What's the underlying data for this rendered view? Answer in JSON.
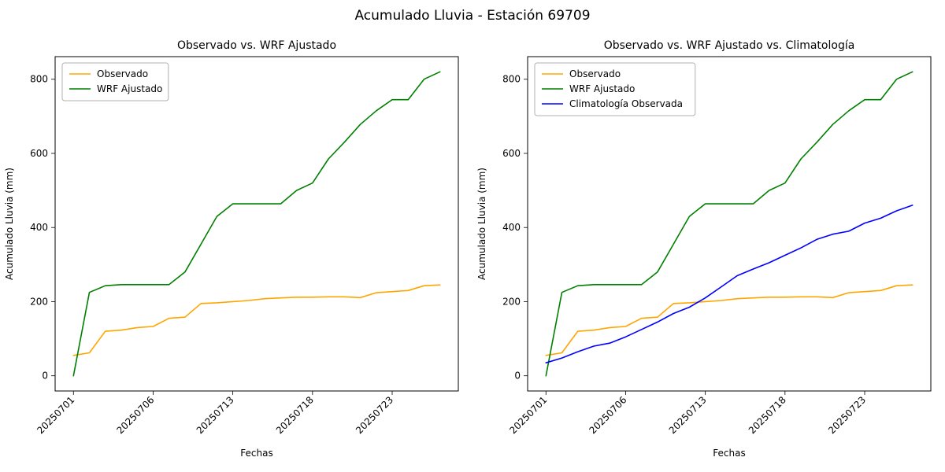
{
  "figure": {
    "title": "Acumulado Lluvia - Estación 69709"
  },
  "chart_data": [
    {
      "type": "line",
      "title": "Observado vs. WRF Ajustado",
      "xlabel": "Fechas",
      "ylabel": "Acumulado Lluvia (mm)",
      "x": [
        "20250701",
        "20250702",
        "20250703",
        "20250704",
        "20250705",
        "20250706",
        "20250707",
        "20250708",
        "20250709",
        "20250710",
        "20250713",
        "20250714",
        "20250715",
        "20250716",
        "20250717",
        "20250718",
        "20250719",
        "20250720",
        "20250721",
        "20250722",
        "20250723",
        "20250724",
        "20250725",
        "20250726"
      ],
      "xticks": [
        "20250701",
        "20250706",
        "20250713",
        "20250718",
        "20250723"
      ],
      "yticks": [
        0,
        200,
        400,
        600,
        800
      ],
      "ylim": [
        -41,
        861
      ],
      "grid": false,
      "legend_position": "upper left",
      "series": [
        {
          "name": "Observado",
          "color": "#FFA500",
          "values": [
            55,
            62,
            120,
            123,
            130,
            133,
            155,
            158,
            195,
            197,
            200,
            203,
            208,
            210,
            212,
            212,
            213,
            213,
            211,
            224,
            227,
            230,
            243,
            245
          ]
        },
        {
          "name": "WRF Ajustado",
          "color": "#008000",
          "values": [
            0,
            225,
            243,
            246,
            246,
            246,
            246,
            280,
            355,
            430,
            464,
            464,
            464,
            464,
            500,
            520,
            585,
            630,
            678,
            715,
            745,
            745,
            800,
            820
          ]
        }
      ]
    },
    {
      "type": "line",
      "title": "Observado vs. WRF Ajustado vs. Climatología",
      "xlabel": "Fechas",
      "ylabel": "Acumulado Lluvia (mm)",
      "x": [
        "20250701",
        "20250702",
        "20250703",
        "20250704",
        "20250705",
        "20250706",
        "20250707",
        "20250708",
        "20250709",
        "20250710",
        "20250713",
        "20250714",
        "20250715",
        "20250716",
        "20250717",
        "20250718",
        "20250719",
        "20250720",
        "20250721",
        "20250722",
        "20250723",
        "20250724",
        "20250725",
        "20250726"
      ],
      "xticks": [
        "20250701",
        "20250706",
        "20250713",
        "20250718",
        "20250723"
      ],
      "yticks": [
        0,
        200,
        400,
        600,
        800
      ],
      "ylim": [
        -41,
        861
      ],
      "grid": false,
      "legend_position": "upper left",
      "series": [
        {
          "name": "Observado",
          "color": "#FFA500",
          "values": [
            55,
            62,
            120,
            123,
            130,
            133,
            155,
            158,
            195,
            197,
            200,
            203,
            208,
            210,
            212,
            212,
            213,
            213,
            211,
            224,
            227,
            230,
            243,
            245
          ]
        },
        {
          "name": "WRF Ajustado",
          "color": "#008000",
          "values": [
            0,
            225,
            243,
            246,
            246,
            246,
            246,
            280,
            355,
            430,
            464,
            464,
            464,
            464,
            500,
            520,
            585,
            630,
            678,
            715,
            745,
            745,
            800,
            820
          ]
        },
        {
          "name": "Climatología Observada",
          "color": "#0000FF",
          "values": [
            35,
            48,
            65,
            80,
            88,
            105,
            125,
            145,
            168,
            185,
            210,
            240,
            270,
            288,
            305,
            325,
            345,
            368,
            382,
            390,
            412,
            425,
            445,
            460
          ]
        }
      ]
    }
  ]
}
